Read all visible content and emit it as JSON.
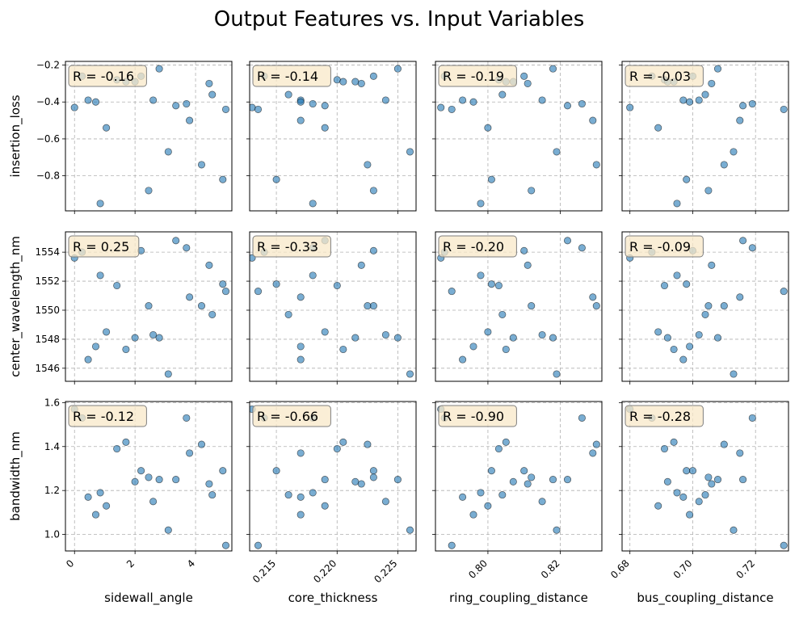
{
  "chart_data": {
    "type": "scatter",
    "title": "Output Features vs. Input Variables",
    "x_variables": [
      "sidewall_angle",
      "core_thickness",
      "ring_coupling_distance",
      "bus_coupling_distance"
    ],
    "y_variables": [
      "insertion_loss",
      "center_wavelength_nm",
      "bandwidth_nm"
    ],
    "x_axes": [
      {
        "name": "sidewall_angle",
        "xlim": [
          -0.3,
          5.2
        ],
        "ticks": [
          0,
          2,
          4
        ],
        "tick_labels": [
          "0",
          "2",
          "4"
        ]
      },
      {
        "name": "core_thickness",
        "xlim": [
          0.2128,
          0.2265
        ],
        "ticks": [
          0.215,
          0.22,
          0.225
        ],
        "tick_labels": [
          "0.215",
          "0.220",
          "0.225"
        ]
      },
      {
        "name": "ring_coupling_distance",
        "xlim": [
          0.7855,
          0.8315
        ],
        "ticks": [
          0.8,
          0.82
        ],
        "tick_labels": [
          "0.80",
          "0.82"
        ]
      },
      {
        "name": "bus_coupling_distance",
        "xlim": [
          0.6775,
          0.7305
        ],
        "ticks": [
          0.68,
          0.7,
          0.72
        ],
        "tick_labels": [
          "0.68",
          "0.70",
          "0.72"
        ]
      }
    ],
    "y_axes": [
      {
        "name": "insertion_loss",
        "ylim": [
          -0.99,
          -0.18
        ],
        "ticks": [
          -0.8,
          -0.6,
          -0.4,
          -0.2
        ],
        "tick_labels": [
          "−0.8",
          "−0.6",
          "−0.4",
          "−0.2"
        ]
      },
      {
        "name": "center_wavelength_nm",
        "ylim": [
          1545.1,
          1555.4
        ],
        "ticks": [
          1546,
          1548,
          1550,
          1552,
          1554
        ],
        "tick_labels": [
          "1546",
          "1548",
          "1550",
          "1552",
          "1554"
        ]
      },
      {
        "name": "bandwidth_nm",
        "ylim": [
          0.925,
          1.605
        ],
        "ticks": [
          1.0,
          1.2,
          1.4,
          1.6
        ],
        "tick_labels": [
          "1.0",
          "1.2",
          "1.4",
          "1.6"
        ]
      }
    ],
    "samples": [
      {
        "sidewall_angle": 0.0,
        "core_thickness": 0.213,
        "ring_coupling_distance": 0.787,
        "bus_coupling_distance": 0.68,
        "insertion_loss": -0.43,
        "center_wavelength_nm": 1553.6,
        "bandwidth_nm": 1.57
      },
      {
        "sidewall_angle": 0.25,
        "core_thickness": 0.214,
        "ring_coupling_distance": 0.788,
        "bus_coupling_distance": 0.687,
        "insertion_loss": -0.26,
        "center_wavelength_nm": 1554.0,
        "bandwidth_nm": 1.53
      },
      {
        "sidewall_angle": 0.45,
        "core_thickness": 0.217,
        "ring_coupling_distance": 0.793,
        "bus_coupling_distance": 0.697,
        "insertion_loss": -0.39,
        "center_wavelength_nm": 1546.6,
        "bandwidth_nm": 1.17
      },
      {
        "sidewall_angle": 0.7,
        "core_thickness": 0.217,
        "ring_coupling_distance": 0.796,
        "bus_coupling_distance": 0.699,
        "insertion_loss": -0.4,
        "center_wavelength_nm": 1547.5,
        "bandwidth_nm": 1.09
      },
      {
        "sidewall_angle": 0.85,
        "core_thickness": 0.218,
        "ring_coupling_distance": 0.798,
        "bus_coupling_distance": 0.695,
        "insertion_loss": -0.95,
        "center_wavelength_nm": 1552.4,
        "bandwidth_nm": 1.19
      },
      {
        "sidewall_angle": 1.05,
        "core_thickness": 0.219,
        "ring_coupling_distance": 0.8,
        "bus_coupling_distance": 0.689,
        "insertion_loss": -0.54,
        "center_wavelength_nm": 1548.5,
        "bandwidth_nm": 1.13
      },
      {
        "sidewall_angle": 1.4,
        "core_thickness": 0.22,
        "ring_coupling_distance": 0.803,
        "bus_coupling_distance": 0.691,
        "insertion_loss": -0.28,
        "center_wavelength_nm": 1551.7,
        "bandwidth_nm": 1.39
      },
      {
        "sidewall_angle": 1.7,
        "core_thickness": 0.2205,
        "ring_coupling_distance": 0.805,
        "bus_coupling_distance": 0.694,
        "insertion_loss": -0.29,
        "center_wavelength_nm": 1547.3,
        "bandwidth_nm": 1.42
      },
      {
        "sidewall_angle": 2.0,
        "core_thickness": 0.2215,
        "ring_coupling_distance": 0.807,
        "bus_coupling_distance": 0.692,
        "insertion_loss": -0.29,
        "center_wavelength_nm": 1548.1,
        "bandwidth_nm": 1.24
      },
      {
        "sidewall_angle": 2.2,
        "core_thickness": 0.223,
        "ring_coupling_distance": 0.81,
        "bus_coupling_distance": 0.7,
        "insertion_loss": -0.26,
        "center_wavelength_nm": 1554.1,
        "bandwidth_nm": 1.29
      },
      {
        "sidewall_angle": 2.45,
        "core_thickness": 0.223,
        "ring_coupling_distance": 0.812,
        "bus_coupling_distance": 0.705,
        "insertion_loss": -0.88,
        "center_wavelength_nm": 1550.3,
        "bandwidth_nm": 1.26
      },
      {
        "sidewall_angle": 2.6,
        "core_thickness": 0.224,
        "ring_coupling_distance": 0.815,
        "bus_coupling_distance": 0.702,
        "insertion_loss": -0.39,
        "center_wavelength_nm": 1548.3,
        "bandwidth_nm": 1.15
      },
      {
        "sidewall_angle": 2.8,
        "core_thickness": 0.225,
        "ring_coupling_distance": 0.818,
        "bus_coupling_distance": 0.708,
        "insertion_loss": -0.22,
        "center_wavelength_nm": 1548.1,
        "bandwidth_nm": 1.25
      },
      {
        "sidewall_angle": 3.1,
        "core_thickness": 0.226,
        "ring_coupling_distance": 0.819,
        "bus_coupling_distance": 0.713,
        "insertion_loss": -0.67,
        "center_wavelength_nm": 1545.6,
        "bandwidth_nm": 1.02
      },
      {
        "sidewall_angle": 3.35,
        "core_thickness": 0.219,
        "ring_coupling_distance": 0.822,
        "bus_coupling_distance": 0.716,
        "insertion_loss": -0.42,
        "center_wavelength_nm": 1554.8,
        "bandwidth_nm": 1.25
      },
      {
        "sidewall_angle": 3.7,
        "core_thickness": 0.218,
        "ring_coupling_distance": 0.826,
        "bus_coupling_distance": 0.719,
        "insertion_loss": -0.41,
        "center_wavelength_nm": 1554.3,
        "bandwidth_nm": 1.53
      },
      {
        "sidewall_angle": 3.8,
        "core_thickness": 0.217,
        "ring_coupling_distance": 0.829,
        "bus_coupling_distance": 0.715,
        "insertion_loss": -0.5,
        "center_wavelength_nm": 1550.9,
        "bandwidth_nm": 1.37
      },
      {
        "sidewall_angle": 4.2,
        "core_thickness": 0.2225,
        "ring_coupling_distance": 0.83,
        "bus_coupling_distance": 0.71,
        "insertion_loss": -0.74,
        "center_wavelength_nm": 1550.3,
        "bandwidth_nm": 1.41
      },
      {
        "sidewall_angle": 4.45,
        "core_thickness": 0.222,
        "ring_coupling_distance": 0.811,
        "bus_coupling_distance": 0.706,
        "insertion_loss": -0.3,
        "center_wavelength_nm": 1553.1,
        "bandwidth_nm": 1.23
      },
      {
        "sidewall_angle": 4.55,
        "core_thickness": 0.216,
        "ring_coupling_distance": 0.804,
        "bus_coupling_distance": 0.704,
        "insertion_loss": -0.36,
        "center_wavelength_nm": 1549.7,
        "bandwidth_nm": 1.18
      },
      {
        "sidewall_angle": 4.9,
        "core_thickness": 0.215,
        "ring_coupling_distance": 0.801,
        "bus_coupling_distance": 0.698,
        "insertion_loss": -0.82,
        "center_wavelength_nm": 1551.8,
        "bandwidth_nm": 1.29
      },
      {
        "sidewall_angle": 5.0,
        "core_thickness": 0.2135,
        "ring_coupling_distance": 0.79,
        "bus_coupling_distance": 0.729,
        "insertion_loss": -0.44,
        "center_wavelength_nm": 1551.3,
        "bandwidth_nm": 0.95
      }
    ],
    "correlations": [
      [
        "R = -0.16",
        "R = -0.14",
        "R = -0.19",
        "R = -0.03"
      ],
      [
        "R = 0.25",
        "R = -0.33",
        "R = -0.20",
        "R = -0.09"
      ],
      [
        "R = -0.12",
        "R = -0.66",
        "R = -0.90",
        "R = -0.28"
      ]
    ],
    "grid": true,
    "marker_color": "#1f77b4",
    "annotation_box_color": "#f5deb3"
  }
}
